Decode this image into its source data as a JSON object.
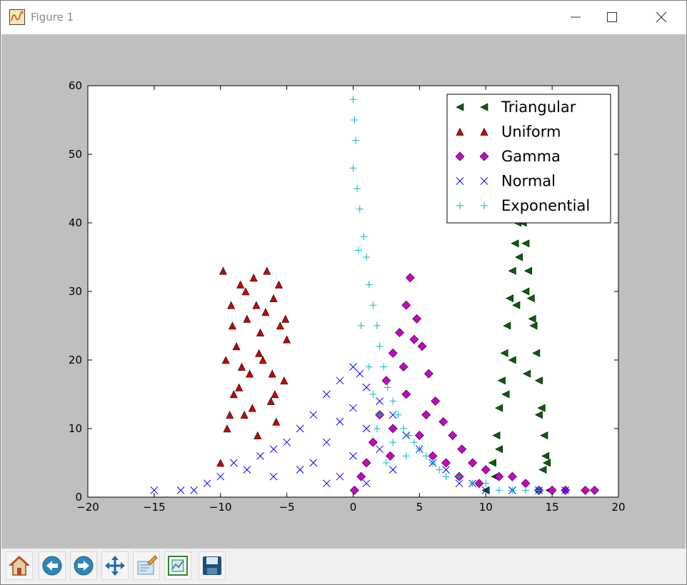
{
  "window": {
    "title": "Figure 1"
  },
  "toolbar": {
    "items": [
      {
        "name": "home-button",
        "icon": "home-icon"
      },
      {
        "name": "back-button",
        "icon": "back-arrow-icon"
      },
      {
        "name": "forward-button",
        "icon": "forward-arrow-icon"
      },
      {
        "name": "pan-button",
        "icon": "move-icon"
      },
      {
        "name": "zoom-button",
        "icon": "zoom-rect-icon"
      },
      {
        "name": "subplots-button",
        "icon": "subplots-icon"
      },
      {
        "name": "save-button",
        "icon": "floppy-icon"
      }
    ]
  },
  "chart_data": {
    "type": "scatter",
    "title": "",
    "xlabel": "",
    "ylabel": "",
    "xlim": [
      -20,
      20
    ],
    "ylim": [
      0,
      60
    ],
    "xticks": [
      -20,
      -15,
      -10,
      -5,
      0,
      5,
      10,
      15,
      20
    ],
    "yticks": [
      0,
      10,
      20,
      30,
      40,
      50,
      60
    ],
    "xtick_labels": [
      "−20",
      "−15",
      "−10",
      "−5",
      "0",
      "5",
      "10",
      "15",
      "20"
    ],
    "ytick_labels": [
      "0",
      "10",
      "20",
      "30",
      "40",
      "50",
      "60"
    ],
    "grid": false,
    "legend_position": "top-right",
    "series": [
      {
        "name": "Triangular",
        "marker": "triangle-left",
        "color": "#006400",
        "points": [
          [
            10,
            1
          ],
          [
            10.5,
            5
          ],
          [
            10.8,
            9
          ],
          [
            11,
            13
          ],
          [
            11.2,
            17
          ],
          [
            11.4,
            21
          ],
          [
            11.6,
            25
          ],
          [
            11.8,
            29
          ],
          [
            12,
            33
          ],
          [
            12.2,
            37
          ],
          [
            12.4,
            40
          ],
          [
            12.6,
            42
          ],
          [
            12.8,
            40
          ],
          [
            13,
            37
          ],
          [
            13.2,
            33
          ],
          [
            13.4,
            29
          ],
          [
            13.6,
            25
          ],
          [
            13.8,
            21
          ],
          [
            14,
            17
          ],
          [
            14.2,
            13
          ],
          [
            14.4,
            9
          ],
          [
            14.6,
            5
          ],
          [
            14.8,
            1
          ],
          [
            11,
            7
          ],
          [
            12,
            20
          ],
          [
            13,
            30
          ],
          [
            14,
            12
          ],
          [
            12.5,
            35
          ],
          [
            13.5,
            26
          ],
          [
            11.5,
            15
          ],
          [
            14.5,
            6
          ],
          [
            10.7,
            3
          ],
          [
            12.3,
            28
          ],
          [
            13.1,
            18
          ],
          [
            14.3,
            4
          ]
        ]
      },
      {
        "name": "Uniform",
        "marker": "triangle-up",
        "color": "#cc0000",
        "points": [
          [
            -10,
            5
          ],
          [
            -9.8,
            33
          ],
          [
            -9.5,
            10
          ],
          [
            -9.2,
            28
          ],
          [
            -9,
            15
          ],
          [
            -8.8,
            22
          ],
          [
            -8.5,
            31
          ],
          [
            -8.2,
            12
          ],
          [
            -8,
            26
          ],
          [
            -7.8,
            18
          ],
          [
            -7.5,
            32
          ],
          [
            -7.2,
            9
          ],
          [
            -7,
            24
          ],
          [
            -6.8,
            20
          ],
          [
            -6.5,
            33
          ],
          [
            -6.2,
            14
          ],
          [
            -6,
            29
          ],
          [
            -5.8,
            11
          ],
          [
            -5.5,
            25
          ],
          [
            -5.2,
            17
          ],
          [
            -5,
            23
          ],
          [
            -9.6,
            20
          ],
          [
            -9.1,
            25
          ],
          [
            -8.6,
            16
          ],
          [
            -8.1,
            30
          ],
          [
            -7.6,
            13
          ],
          [
            -7.1,
            21
          ],
          [
            -6.6,
            27
          ],
          [
            -6.1,
            18
          ],
          [
            -5.6,
            31
          ],
          [
            -5.1,
            26
          ],
          [
            -9.3,
            12
          ],
          [
            -7.3,
            28
          ],
          [
            -5.9,
            15
          ],
          [
            -8.4,
            19
          ]
        ]
      },
      {
        "name": "Gamma",
        "marker": "diamond",
        "color": "#cc00cc",
        "points": [
          [
            0.1,
            1
          ],
          [
            0.6,
            3
          ],
          [
            1,
            5
          ],
          [
            1.5,
            8
          ],
          [
            2,
            12
          ],
          [
            2.5,
            17
          ],
          [
            3,
            21
          ],
          [
            3.5,
            24
          ],
          [
            4,
            28
          ],
          [
            4.3,
            32
          ],
          [
            4.8,
            26
          ],
          [
            5.2,
            22
          ],
          [
            5.7,
            18
          ],
          [
            6.2,
            14
          ],
          [
            6.8,
            11
          ],
          [
            7.5,
            9
          ],
          [
            8.2,
            7
          ],
          [
            9,
            5
          ],
          [
            10,
            4
          ],
          [
            11,
            3
          ],
          [
            12,
            3
          ],
          [
            13,
            2
          ],
          [
            14,
            1
          ],
          [
            15,
            1
          ],
          [
            16,
            1
          ],
          [
            17.5,
            1
          ],
          [
            18.2,
            1
          ],
          [
            3,
            10
          ],
          [
            4,
            15
          ],
          [
            5,
            9
          ],
          [
            6,
            6
          ],
          [
            7,
            5
          ],
          [
            8,
            3
          ],
          [
            9.5,
            2
          ],
          [
            2.8,
            6
          ],
          [
            3.8,
            19
          ],
          [
            4.6,
            23
          ],
          [
            5.5,
            12
          ]
        ]
      },
      {
        "name": "Normal",
        "marker": "x",
        "color": "#0000ff",
        "points": [
          [
            -15,
            1
          ],
          [
            -13,
            1
          ],
          [
            -12,
            1
          ],
          [
            -11,
            2
          ],
          [
            -10,
            3
          ],
          [
            -9,
            5
          ],
          [
            -8,
            4
          ],
          [
            -7,
            6
          ],
          [
            -6,
            7
          ],
          [
            -5,
            8
          ],
          [
            -4,
            10
          ],
          [
            -3,
            12
          ],
          [
            -2,
            15
          ],
          [
            -1,
            17
          ],
          [
            0,
            19
          ],
          [
            0.5,
            18
          ],
          [
            1,
            16
          ],
          [
            2,
            14
          ],
          [
            3,
            12
          ],
          [
            4,
            9
          ],
          [
            5,
            7
          ],
          [
            6,
            5
          ],
          [
            7,
            4
          ],
          [
            8,
            2
          ],
          [
            9,
            2
          ],
          [
            10,
            1
          ],
          [
            12,
            1
          ],
          [
            14,
            1
          ],
          [
            16,
            1
          ],
          [
            -3,
            5
          ],
          [
            -2,
            8
          ],
          [
            -1,
            11
          ],
          [
            0,
            13
          ],
          [
            1,
            10
          ],
          [
            2,
            7
          ],
          [
            -4,
            4
          ],
          [
            -6,
            3
          ],
          [
            0,
            6
          ],
          [
            3,
            4
          ],
          [
            -1,
            3
          ],
          [
            -2,
            2
          ],
          [
            1,
            2
          ]
        ]
      },
      {
        "name": "Exponential",
        "marker": "plus",
        "color": "#00bbbb",
        "points": [
          [
            0,
            58
          ],
          [
            0.1,
            55
          ],
          [
            0.2,
            52
          ],
          [
            0,
            48
          ],
          [
            0.3,
            45
          ],
          [
            0.5,
            42
          ],
          [
            0.8,
            38
          ],
          [
            1,
            35
          ],
          [
            1.2,
            31
          ],
          [
            1.5,
            28
          ],
          [
            1.8,
            25
          ],
          [
            2,
            22
          ],
          [
            2.3,
            19
          ],
          [
            2.6,
            16
          ],
          [
            3,
            14
          ],
          [
            3.4,
            12
          ],
          [
            3.8,
            10
          ],
          [
            4.2,
            9
          ],
          [
            4.6,
            8
          ],
          [
            5,
            7
          ],
          [
            5.5,
            6
          ],
          [
            6,
            5
          ],
          [
            6.5,
            4
          ],
          [
            7,
            3
          ],
          [
            8,
            3
          ],
          [
            9,
            2
          ],
          [
            10,
            2
          ],
          [
            11,
            1
          ],
          [
            12,
            1
          ],
          [
            13,
            1
          ],
          [
            14,
            1
          ],
          [
            1.2,
            19
          ],
          [
            0.6,
            25
          ],
          [
            2,
            12
          ],
          [
            3,
            8
          ],
          [
            4,
            6
          ],
          [
            2.5,
            5
          ],
          [
            1.5,
            15
          ],
          [
            0.4,
            36
          ],
          [
            1.8,
            10
          ]
        ]
      }
    ]
  }
}
